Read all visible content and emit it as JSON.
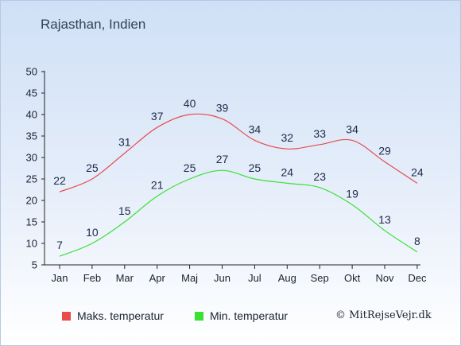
{
  "title": "Rajasthan, Indien",
  "credit": "© MitRejseVejr.dk",
  "chart_data": {
    "type": "line",
    "categories": [
      "Jan",
      "Feb",
      "Mar",
      "Apr",
      "Maj",
      "Jun",
      "Jul",
      "Aug",
      "Sep",
      "Okt",
      "Nov",
      "Dec"
    ],
    "series": [
      {
        "name": "Maks. temperatur",
        "color": "#e84c4c",
        "values": [
          22,
          25,
          31,
          37,
          40,
          39,
          34,
          32,
          33,
          34,
          29,
          24
        ]
      },
      {
        "name": "Min. temperatur",
        "color": "#3ae034",
        "values": [
          7,
          10,
          15,
          21,
          25,
          27,
          25,
          24,
          23,
          19,
          13,
          8
        ]
      }
    ],
    "yticks": [
      5,
      10,
      15,
      20,
      25,
      30,
      35,
      40,
      45,
      50
    ],
    "ylim": [
      5,
      50
    ],
    "grid": false,
    "legend": "bottom"
  }
}
